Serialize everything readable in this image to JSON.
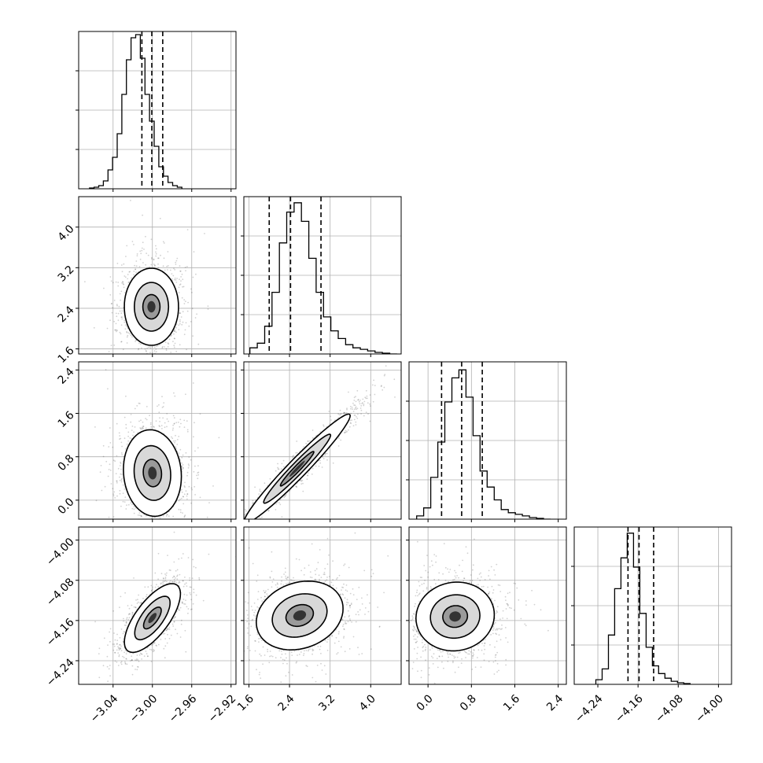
{
  "chart_data": {
    "type": "corner",
    "parameters": [
      {
        "range": [
          -3.075,
          -2.915
        ],
        "ticks": [
          -3.04,
          -3.0,
          -2.96,
          -2.92
        ],
        "tick_labels": [
          "−3.04",
          "−3.00",
          "−2.96",
          "−2.92"
        ]
      },
      {
        "range": [
          1.5,
          4.6
        ],
        "ticks": [
          1.6,
          2.4,
          3.2,
          4.0
        ],
        "tick_labels": [
          "1.6",
          "2.4",
          "3.2",
          "4.0"
        ]
      },
      {
        "range": [
          -0.35,
          2.55
        ],
        "ticks": [
          0.0,
          0.8,
          1.6,
          2.4
        ],
        "tick_labels": [
          "0.0",
          "0.8",
          "1.6",
          "2.4"
        ]
      },
      {
        "range": [
          -4.287,
          -3.974
        ],
        "ticks": [
          -4.24,
          -4.16,
          -4.08,
          -4.0
        ],
        "tick_labels": [
          "−4.24",
          "−4.16",
          "−4.08",
          "−4.00"
        ]
      }
    ],
    "marginals": [
      {
        "bin_edges_start": -3.064,
        "bin_width": 0.0047,
        "counts": [
          0.005,
          0.01,
          0.02,
          0.05,
          0.12,
          0.2,
          0.35,
          0.6,
          0.82,
          0.96,
          0.98,
          0.83,
          0.6,
          0.43,
          0.27,
          0.14,
          0.08,
          0.04,
          0.02,
          0.01
        ],
        "quantiles": [
          -3.0107,
          -3.0006,
          -2.9895
        ],
        "ylim": [
          0,
          1.0
        ]
      },
      {
        "bin_edges_start": 1.62,
        "bin_width": 0.145,
        "counts": [
          0.04,
          0.07,
          0.18,
          0.4,
          0.72,
          0.92,
          0.98,
          0.86,
          0.62,
          0.4,
          0.24,
          0.15,
          0.1,
          0.06,
          0.04,
          0.03,
          0.02,
          0.01,
          0.005,
          0.0
        ],
        "quantiles": [
          2.0,
          2.42,
          3.02
        ],
        "ylim": [
          0,
          1.02
        ]
      },
      {
        "bin_edges_start": -0.21,
        "bin_width": 0.13,
        "counts": [
          0.02,
          0.07,
          0.26,
          0.48,
          0.73,
          0.88,
          0.93,
          0.76,
          0.52,
          0.3,
          0.2,
          0.12,
          0.06,
          0.04,
          0.03,
          0.02,
          0.01,
          0.005,
          0.0
        ],
        "quantiles": [
          0.25,
          0.62,
          1.0
        ],
        "ylim": [
          0,
          0.98
        ]
      },
      {
        "bin_edges_start": -4.244,
        "bin_width": 0.0125,
        "counts": [
          0.03,
          0.1,
          0.32,
          0.62,
          0.82,
          0.98,
          0.76,
          0.46,
          0.24,
          0.12,
          0.07,
          0.04,
          0.02,
          0.01,
          0.005
        ],
        "quantiles": [
          -4.18,
          -4.158,
          -4.129
        ],
        "ylim": [
          0,
          1.02
        ]
      }
    ],
    "joint": [
      {
        "x_param": 0,
        "y_param": 1,
        "center": [
          -3.001,
          2.43
        ],
        "sd": [
          0.0145,
          0.4
        ],
        "corr": 0.0,
        "levels_sd": [
          0.6,
          1.2,
          1.9
        ]
      },
      {
        "x_param": 0,
        "y_param": 2,
        "center": [
          -3.0,
          0.5
        ],
        "sd": [
          0.0155,
          0.42
        ],
        "corr": -0.08,
        "levels_sd": [
          0.6,
          1.2,
          1.9
        ]
      },
      {
        "x_param": 1,
        "y_param": 2,
        "center": [
          2.55,
          0.58
        ],
        "sd": [
          0.55,
          0.53
        ],
        "corr": 0.97,
        "levels_sd": [
          0.6,
          1.2,
          1.9
        ]
      },
      {
        "x_param": 0,
        "y_param": 3,
        "center": [
          -3.0,
          -4.155
        ],
        "sd": [
          0.015,
          0.036
        ],
        "corr": 0.7,
        "levels_sd": [
          0.6,
          1.2,
          1.9
        ]
      },
      {
        "x_param": 1,
        "y_param": 3,
        "center": [
          2.6,
          -4.15
        ],
        "sd": [
          0.45,
          0.036
        ],
        "corr": 0.2,
        "levels_sd": [
          0.6,
          1.2,
          1.9
        ]
      },
      {
        "x_param": 2,
        "y_param": 3,
        "center": [
          0.5,
          -4.152
        ],
        "sd": [
          0.38,
          0.036
        ],
        "corr": 0.05,
        "levels_sd": [
          0.6,
          1.2,
          1.9
        ]
      }
    ],
    "grid": true,
    "colors": {
      "line": "#000000",
      "grid": "#b0b0b0",
      "density": "#000000"
    }
  }
}
